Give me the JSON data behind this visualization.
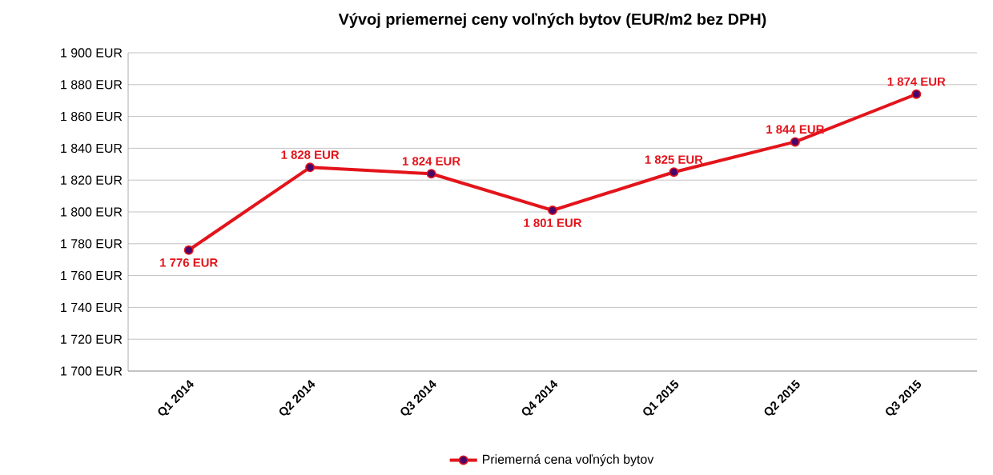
{
  "chart_data": {
    "type": "line",
    "title": "Vývoj priemernej ceny voľných bytov (EUR/m2 bez DPH)",
    "categories": [
      "Q1 2014",
      "Q2 2014",
      "Q3 2014",
      "Q4 2014",
      "Q1 2015",
      "Q2 2015",
      "Q3 2015"
    ],
    "series": [
      {
        "name": "Priemerná cena voľných bytov",
        "color": "#e3141b",
        "values": [
          1776,
          1828,
          1824,
          1801,
          1825,
          1844,
          1874
        ],
        "value_labels": [
          "1 776 EUR",
          "1 828 EUR",
          "1 824 EUR",
          "1 801 EUR",
          "1 825 EUR",
          "1 844 EUR",
          "1 874 EUR"
        ]
      }
    ],
    "ylim": [
      1700,
      1900
    ],
    "yticks": [
      {
        "value": 1700,
        "label": "1 700 EUR"
      },
      {
        "value": 1720,
        "label": "1 720 EUR"
      },
      {
        "value": 1740,
        "label": "1 740 EUR"
      },
      {
        "value": 1760,
        "label": "1 760 EUR"
      },
      {
        "value": 1780,
        "label": "1 780 EUR"
      },
      {
        "value": 1800,
        "label": "1 800 EUR"
      },
      {
        "value": 1820,
        "label": "1 820 EUR"
      },
      {
        "value": 1840,
        "label": "1 840 EUR"
      },
      {
        "value": 1860,
        "label": "1 860 EUR"
      },
      {
        "value": 1880,
        "label": "1 880 EUR"
      },
      {
        "value": 1900,
        "label": "1 900 EUR"
      }
    ],
    "grid": "y",
    "legend": "bottom",
    "marker": "circle",
    "line_style": "solid"
  }
}
